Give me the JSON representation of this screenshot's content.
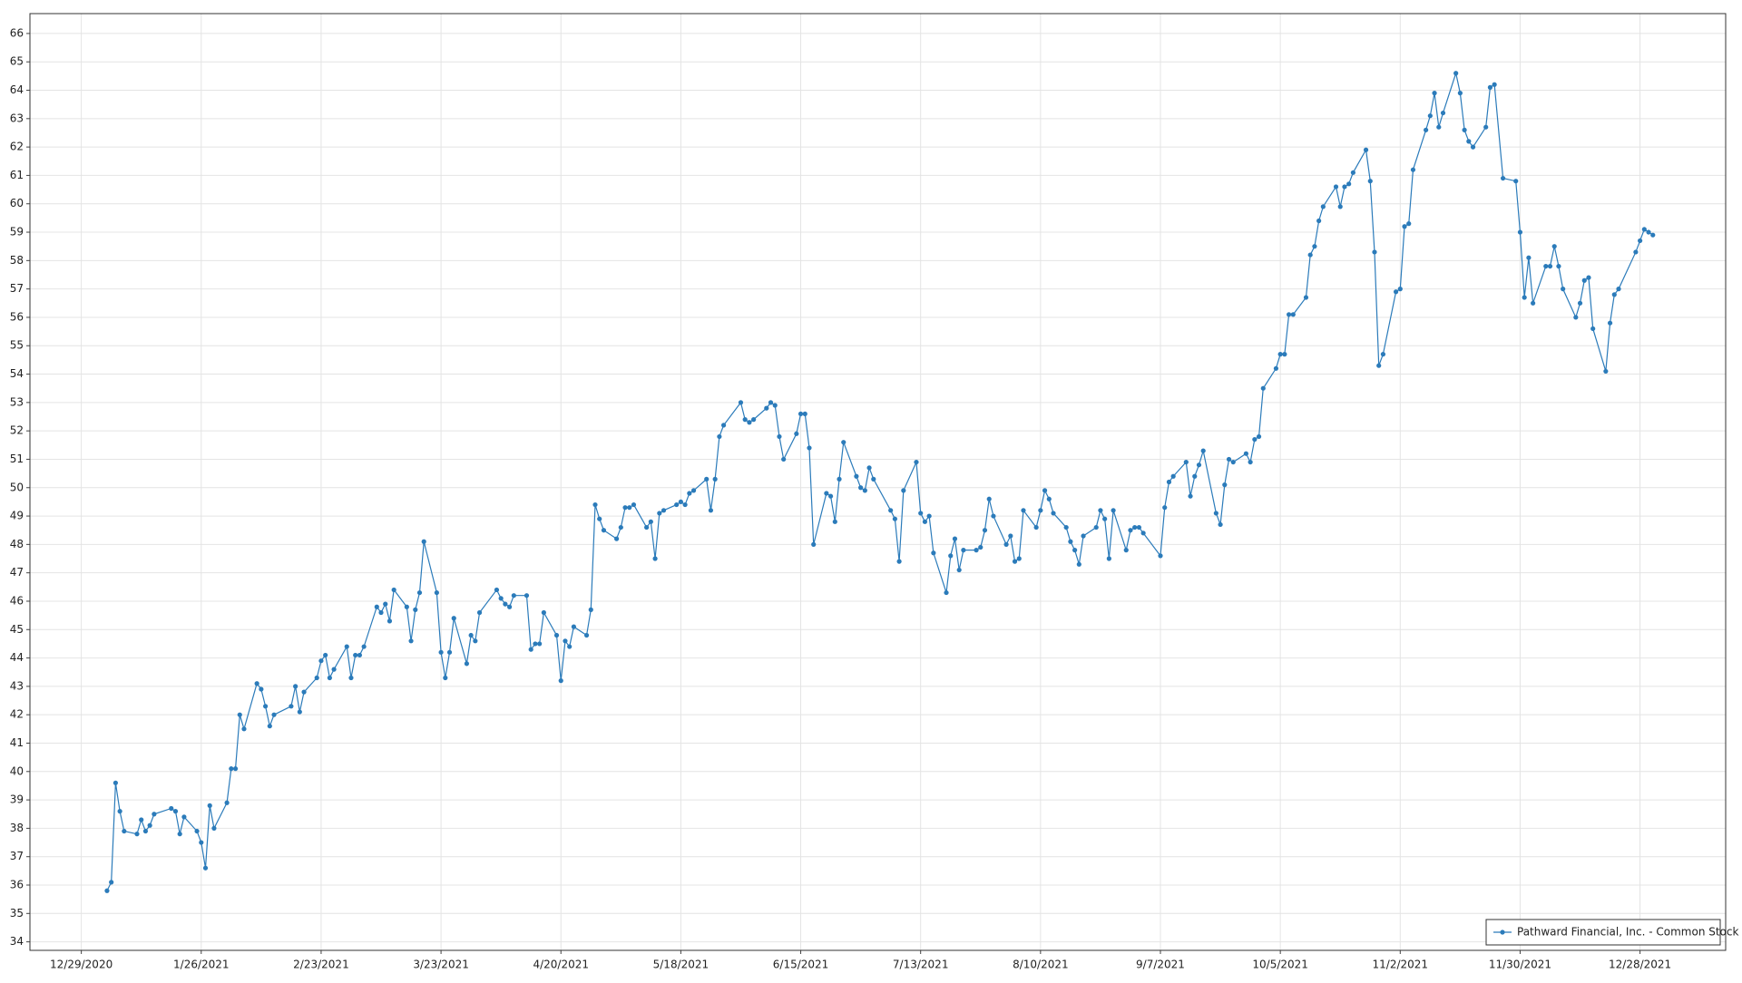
{
  "chart_data": {
    "type": "line",
    "x": [
      "1/4/2021",
      "1/5/2021",
      "1/6/2021",
      "1/7/2021",
      "1/8/2021",
      "1/11/2021",
      "1/12/2021",
      "1/13/2021",
      "1/14/2021",
      "1/15/2021",
      "1/19/2021",
      "1/20/2021",
      "1/21/2021",
      "1/22/2021",
      "1/25/2021",
      "1/26/2021",
      "1/27/2021",
      "1/28/2021",
      "1/29/2021",
      "2/1/2021",
      "2/2/2021",
      "2/3/2021",
      "2/4/2021",
      "2/5/2021",
      "2/8/2021",
      "2/9/2021",
      "2/10/2021",
      "2/11/2021",
      "2/12/2021",
      "2/16/2021",
      "2/17/2021",
      "2/18/2021",
      "2/19/2021",
      "2/22/2021",
      "2/23/2021",
      "2/24/2021",
      "2/25/2021",
      "2/26/2021",
      "3/1/2021",
      "3/2/2021",
      "3/3/2021",
      "3/4/2021",
      "3/5/2021",
      "3/8/2021",
      "3/9/2021",
      "3/10/2021",
      "3/11/2021",
      "3/12/2021",
      "3/15/2021",
      "3/16/2021",
      "3/17/2021",
      "3/18/2021",
      "3/19/2021",
      "3/22/2021",
      "3/23/2021",
      "3/24/2021",
      "3/25/2021",
      "3/26/2021",
      "3/29/2021",
      "3/30/2021",
      "3/31/2021",
      "4/1/2021",
      "4/5/2021",
      "4/6/2021",
      "4/7/2021",
      "4/8/2021",
      "4/9/2021",
      "4/12/2021",
      "4/13/2021",
      "4/14/2021",
      "4/15/2021",
      "4/16/2021",
      "4/19/2021",
      "4/20/2021",
      "4/21/2021",
      "4/22/2021",
      "4/23/2021",
      "4/26/2021",
      "4/27/2021",
      "4/28/2021",
      "4/29/2021",
      "4/30/2021",
      "5/3/2021",
      "5/4/2021",
      "5/5/2021",
      "5/6/2021",
      "5/7/2021",
      "5/10/2021",
      "5/11/2021",
      "5/12/2021",
      "5/13/2021",
      "5/14/2021",
      "5/17/2021",
      "5/18/2021",
      "5/19/2021",
      "5/20/2021",
      "5/21/2021",
      "5/24/2021",
      "5/25/2021",
      "5/26/2021",
      "5/27/2021",
      "5/28/2021",
      "6/1/2021",
      "6/2/2021",
      "6/3/2021",
      "6/4/2021",
      "6/7/2021",
      "6/8/2021",
      "6/9/2021",
      "6/10/2021",
      "6/11/2021",
      "6/14/2021",
      "6/15/2021",
      "6/16/2021",
      "6/17/2021",
      "6/18/2021",
      "6/21/2021",
      "6/22/2021",
      "6/23/2021",
      "6/24/2021",
      "6/25/2021",
      "6/28/2021",
      "6/29/2021",
      "6/30/2021",
      "7/1/2021",
      "7/2/2021",
      "7/6/2021",
      "7/7/2021",
      "7/8/2021",
      "7/9/2021",
      "7/12/2021",
      "7/13/2021",
      "7/14/2021",
      "7/15/2021",
      "7/16/2021",
      "7/19/2021",
      "7/20/2021",
      "7/21/2021",
      "7/22/2021",
      "7/23/2021",
      "7/26/2021",
      "7/27/2021",
      "7/28/2021",
      "7/29/2021",
      "7/30/2021",
      "8/2/2021",
      "8/3/2021",
      "8/4/2021",
      "8/5/2021",
      "8/6/2021",
      "8/9/2021",
      "8/10/2021",
      "8/11/2021",
      "8/12/2021",
      "8/13/2021",
      "8/16/2021",
      "8/17/2021",
      "8/18/2021",
      "8/19/2021",
      "8/20/2021",
      "8/23/2021",
      "8/24/2021",
      "8/25/2021",
      "8/26/2021",
      "8/27/2021",
      "8/30/2021",
      "8/31/2021",
      "9/1/2021",
      "9/2/2021",
      "9/3/2021",
      "9/7/2021",
      "9/8/2021",
      "9/9/2021",
      "9/10/2021",
      "9/13/2021",
      "9/14/2021",
      "9/15/2021",
      "9/16/2021",
      "9/17/2021",
      "9/20/2021",
      "9/21/2021",
      "9/22/2021",
      "9/23/2021",
      "9/24/2021",
      "9/27/2021",
      "9/28/2021",
      "9/29/2021",
      "9/30/2021",
      "10/1/2021",
      "10/4/2021",
      "10/5/2021",
      "10/6/2021",
      "10/7/2021",
      "10/8/2021",
      "10/11/2021",
      "10/12/2021",
      "10/13/2021",
      "10/14/2021",
      "10/15/2021",
      "10/18/2021",
      "10/19/2021",
      "10/20/2021",
      "10/21/2021",
      "10/22/2021",
      "10/25/2021",
      "10/26/2021",
      "10/27/2021",
      "10/28/2021",
      "10/29/2021",
      "11/1/2021",
      "11/2/2021",
      "11/3/2021",
      "11/4/2021",
      "11/5/2021",
      "11/8/2021",
      "11/9/2021",
      "11/10/2021",
      "11/11/2021",
      "11/12/2021",
      "11/15/2021",
      "11/16/2021",
      "11/17/2021",
      "11/18/2021",
      "11/19/2021",
      "11/22/2021",
      "11/23/2021",
      "11/24/2021",
      "11/26/2021",
      "11/29/2021",
      "11/30/2021",
      "12/1/2021",
      "12/2/2021",
      "12/3/2021",
      "12/6/2021",
      "12/7/2021",
      "12/8/2021",
      "12/9/2021",
      "12/10/2021",
      "12/13/2021",
      "12/14/2021",
      "12/15/2021",
      "12/16/2021",
      "12/17/2021",
      "12/20/2021",
      "12/21/2021",
      "12/22/2021",
      "12/23/2021",
      "12/27/2021",
      "12/28/2021",
      "12/29/2021",
      "12/30/2021",
      "12/31/2021"
    ],
    "series": [
      {
        "name": "Pathward Financial, Inc. - Common Stock",
        "color": "#2b7bba",
        "values": [
          35.8,
          36.1,
          39.6,
          38.6,
          37.9,
          37.8,
          38.3,
          37.9,
          38.1,
          38.5,
          38.7,
          38.6,
          37.8,
          38.4,
          37.9,
          37.5,
          36.6,
          38.8,
          38.0,
          38.9,
          40.1,
          40.1,
          42.0,
          41.5,
          43.1,
          42.9,
          42.3,
          41.6,
          42.0,
          42.3,
          43.0,
          42.1,
          42.8,
          43.3,
          43.9,
          44.1,
          43.3,
          43.6,
          44.4,
          43.3,
          44.1,
          44.1,
          44.4,
          45.8,
          45.6,
          45.9,
          45.3,
          46.4,
          45.8,
          44.6,
          45.7,
          46.3,
          48.1,
          46.3,
          44.2,
          43.3,
          44.2,
          45.4,
          43.8,
          44.8,
          44.6,
          45.6,
          46.4,
          46.1,
          45.9,
          45.8,
          46.2,
          46.2,
          44.3,
          44.5,
          44.5,
          45.6,
          44.8,
          43.2,
          44.6,
          44.4,
          45.1,
          44.8,
          45.7,
          49.4,
          48.9,
          48.5,
          48.2,
          48.6,
          49.3,
          49.3,
          49.4,
          48.6,
          48.8,
          47.5,
          49.1,
          49.2,
          49.4,
          49.5,
          49.4,
          49.8,
          49.9,
          50.3,
          49.2,
          50.3,
          51.8,
          52.2,
          53.0,
          52.4,
          52.3,
          52.4,
          52.8,
          53.0,
          52.9,
          51.8,
          51.0,
          51.9,
          52.6,
          52.6,
          51.4,
          48.0,
          49.8,
          49.7,
          48.8,
          50.3,
          51.6,
          50.4,
          50.0,
          49.9,
          50.7,
          50.3,
          49.2,
          48.9,
          47.4,
          49.9,
          50.9,
          49.1,
          48.8,
          49.0,
          47.7,
          46.3,
          47.6,
          48.2,
          47.1,
          47.8,
          47.8,
          47.9,
          48.5,
          49.6,
          49.0,
          48.0,
          48.3,
          47.4,
          47.5,
          49.2,
          48.6,
          49.2,
          49.9,
          49.6,
          49.1,
          48.6,
          48.1,
          47.8,
          47.3,
          48.3,
          48.6,
          49.2,
          48.9,
          47.5,
          49.2,
          47.8,
          48.5,
          48.6,
          48.6,
          48.4,
          47.6,
          49.3,
          50.2,
          50.4,
          50.9,
          49.7,
          50.4,
          50.8,
          51.3,
          49.1,
          48.7,
          50.1,
          51.0,
          50.9,
          51.2,
          50.9,
          51.7,
          51.8,
          53.5,
          54.2,
          54.7,
          54.7,
          56.1,
          56.1,
          56.7,
          58.2,
          58.5,
          59.4,
          59.9,
          60.6,
          59.9,
          60.6,
          60.7,
          61.1,
          61.9,
          60.8,
          58.3,
          54.3,
          54.7,
          56.9,
          57.0,
          59.2,
          59.3,
          61.2,
          62.6,
          63.1,
          63.9,
          62.7,
          63.2,
          64.6,
          63.9,
          62.6,
          62.2,
          62.0,
          62.7,
          64.1,
          64.2,
          60.9,
          60.8,
          59.0,
          56.7,
          58.1,
          56.5,
          57.8,
          57.8,
          58.5,
          57.8,
          57.0,
          56.0,
          56.5,
          57.3,
          57.4,
          55.6,
          54.1,
          55.8,
          56.8,
          57.0,
          58.3,
          58.7,
          59.1,
          59.0,
          58.9
        ]
      }
    ],
    "xlim": [
      "12/17/2020",
      "1/17/2022"
    ],
    "xticks": [
      "12/29/2020",
      "1/26/2021",
      "2/23/2021",
      "3/23/2021",
      "4/20/2021",
      "5/18/2021",
      "6/15/2021",
      "7/13/2021",
      "8/10/2021",
      "9/7/2021",
      "10/5/2021",
      "11/2/2021",
      "11/30/2021",
      "12/28/2021"
    ],
    "ylim": [
      33.7,
      66.7
    ],
    "yticks": [
      34,
      35,
      36,
      37,
      38,
      39,
      40,
      41,
      42,
      43,
      44,
      45,
      46,
      47,
      48,
      49,
      50,
      51,
      52,
      53,
      54,
      55,
      56,
      57,
      58,
      59,
      60,
      61,
      62,
      63,
      64,
      65,
      66
    ],
    "grid": true,
    "legend": "lower right"
  }
}
